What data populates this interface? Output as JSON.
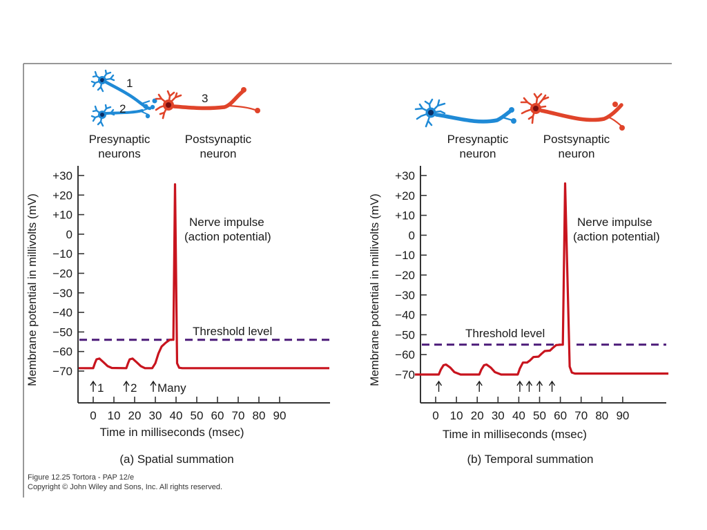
{
  "figure": {
    "credit_line1": "Figure 12.25  Tortora - PAP 12/e",
    "credit_line2": "Copyright © John Wiley and Sons, Inc. All rights reserved.",
    "colors": {
      "trace": "#c8141e",
      "threshold": "#4b1a78",
      "presynaptic": "#1f8ad6",
      "postsynaptic": "#e0442a",
      "axis": "#333333"
    }
  },
  "panels": [
    {
      "id": "a",
      "caption": "(a) Spatial summation",
      "neurons": {
        "pre_label_1": "Presynaptic",
        "pre_label_2": "neurons",
        "post_label_1": "Postsynaptic",
        "post_label_2": "neuron",
        "numbers": [
          "1",
          "2",
          "3"
        ]
      },
      "annotation_impulse_1": "Nerve impulse",
      "annotation_impulse_2": "(action potential)",
      "annotation_threshold": "Threshold level",
      "stimulus_labels": [
        "1",
        "2",
        "Many"
      ]
    },
    {
      "id": "b",
      "caption": "(b) Temporal summation",
      "neurons": {
        "pre_label_1": "Presynaptic",
        "pre_label_2": "neuron",
        "post_label_1": "Postsynaptic",
        "post_label_2": "neuron"
      },
      "annotation_impulse_1": "Nerve impulse",
      "annotation_impulse_2": "(action potential)",
      "annotation_threshold": "Threshold level"
    }
  ],
  "chart_data": [
    {
      "type": "line",
      "title": "(a) Spatial summation",
      "xlabel": "Time in milliseconds (msec)",
      "ylabel": "Membrane potential in millivolts (mV)",
      "xlim": [
        -7,
        114
      ],
      "ylim": [
        -80,
        34
      ],
      "xticks": [
        0,
        10,
        20,
        30,
        40,
        50,
        60,
        70,
        80,
        90
      ],
      "xtick_labels": [
        "0",
        "10",
        "20",
        "30",
        "40",
        "50",
        "60",
        "70",
        "80",
        "90"
      ],
      "yticks": [
        30,
        20,
        10,
        0,
        -10,
        -20,
        -30,
        -40,
        -50,
        -60,
        -70
      ],
      "ytick_labels": [
        "+30",
        "+20",
        "+10",
        "0",
        "−10",
        "−20",
        "−30",
        "−40",
        "−50",
        "−60",
        "−70"
      ],
      "grid": false,
      "threshold_mV": -54,
      "stimuli": [
        {
          "t": 0,
          "label": "1"
        },
        {
          "t": 16,
          "label": "2"
        },
        {
          "t": 29,
          "label": "Many"
        }
      ],
      "series": [
        {
          "name": "membrane potential",
          "points": [
            [
              -7,
              -68.5
            ],
            [
              0,
              -68.5
            ],
            [
              0.8,
              -66
            ],
            [
              1.6,
              -64
            ],
            [
              3,
              -63.6
            ],
            [
              5,
              -65.5
            ],
            [
              7,
              -67.5
            ],
            [
              9,
              -68.4
            ],
            [
              16,
              -68.5
            ],
            [
              16.8,
              -66
            ],
            [
              17.6,
              -64
            ],
            [
              19,
              -63.6
            ],
            [
              21,
              -65.5
            ],
            [
              23,
              -67.5
            ],
            [
              25,
              -68.5
            ],
            [
              28.5,
              -68.5
            ],
            [
              30,
              -66
            ],
            [
              31.5,
              -61
            ],
            [
              33,
              -57.5
            ],
            [
              35,
              -55.5
            ],
            [
              37,
              -54
            ],
            [
              38.7,
              -54
            ],
            [
              39.5,
              25.5
            ],
            [
              40.5,
              -66
            ],
            [
              41.5,
              -68.3
            ],
            [
              43,
              -68.5
            ],
            [
              114,
              -68.5
            ]
          ]
        }
      ]
    },
    {
      "type": "line",
      "title": "(b) Temporal summation",
      "xlabel": "Time in milliseconds (msec)",
      "ylabel": "Membrane potential in millivolts (mV)",
      "xlim": [
        -7,
        112
      ],
      "ylim": [
        -80,
        34
      ],
      "xticks": [
        0,
        10,
        20,
        30,
        40,
        50,
        60,
        70,
        80,
        90
      ],
      "xtick_labels": [
        "0",
        "10",
        "20",
        "30",
        "40",
        "50",
        "60",
        "70",
        "80",
        "90"
      ],
      "yticks": [
        30,
        20,
        10,
        0,
        -10,
        -20,
        -30,
        -40,
        -50,
        -60,
        -70
      ],
      "ytick_labels": [
        "+30",
        "+20",
        "+10",
        "0",
        "−10",
        "−20",
        "−30",
        "−40",
        "−50",
        "−60",
        "−70"
      ],
      "grid": false,
      "threshold_mV": -55,
      "stimuli": [
        {
          "t": 1.5,
          "label": ""
        },
        {
          "t": 21,
          "label": ""
        },
        {
          "t": 40.5,
          "label": ""
        },
        {
          "t": 45,
          "label": ""
        },
        {
          "t": 50,
          "label": ""
        },
        {
          "t": 56,
          "label": ""
        }
      ],
      "series": [
        {
          "name": "membrane potential",
          "points": [
            [
              -10,
              -70
            ],
            [
              1.5,
              -70
            ],
            [
              2.5,
              -67.5
            ],
            [
              3.8,
              -65.3
            ],
            [
              5,
              -65
            ],
            [
              7,
              -66.5
            ],
            [
              9,
              -68.8
            ],
            [
              12,
              -70
            ],
            [
              21,
              -70
            ],
            [
              22,
              -67.5
            ],
            [
              23.3,
              -65.3
            ],
            [
              24.5,
              -65
            ],
            [
              26.5,
              -66.5
            ],
            [
              28.5,
              -68.8
            ],
            [
              31.5,
              -70
            ],
            [
              39.5,
              -70
            ],
            [
              40.5,
              -67
            ],
            [
              42,
              -64
            ],
            [
              44,
              -64
            ],
            [
              45.5,
              -62.8
            ],
            [
              47,
              -61.2
            ],
            [
              49.5,
              -61
            ],
            [
              51,
              -59.5
            ],
            [
              52.5,
              -58.2
            ],
            [
              55,
              -58
            ],
            [
              56.5,
              -56.5
            ],
            [
              58,
              -55.2
            ],
            [
              60.5,
              -55
            ],
            [
              61.2,
              -55
            ],
            [
              62.3,
              26
            ],
            [
              64.5,
              -66
            ],
            [
              65.5,
              -69
            ],
            [
              67,
              -69.5
            ],
            [
              112,
              -69.5
            ]
          ]
        }
      ]
    }
  ]
}
